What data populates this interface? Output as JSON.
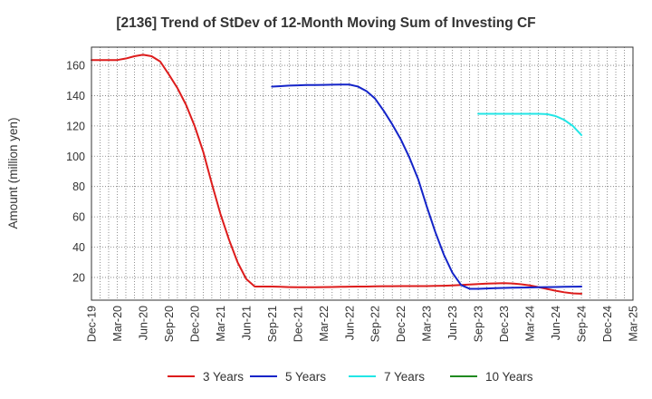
{
  "chart_data": {
    "type": "line",
    "title": "[2136]  Trend of StDev of 12-Month Moving Sum of Investing CF",
    "ylabel": "Amount (million yen)",
    "xlabel": "",
    "ylim": [
      5,
      172
    ],
    "yticks": [
      20,
      40,
      60,
      80,
      100,
      120,
      140,
      160
    ],
    "x_start": "2019-12",
    "x_end": "2025-03",
    "xtick_labels": [
      "Dec-19",
      "Mar-20",
      "Jun-20",
      "Sep-20",
      "Dec-20",
      "Mar-21",
      "Jun-21",
      "Sep-21",
      "Dec-21",
      "Mar-22",
      "Jun-22",
      "Sep-22",
      "Dec-22",
      "Mar-23",
      "Jun-23",
      "Sep-23",
      "Dec-23",
      "Mar-24",
      "Jun-24",
      "Sep-24",
      "Dec-24",
      "Mar-25"
    ],
    "grid": true,
    "legend_position": "bottom",
    "series": [
      {
        "name": "3 Years",
        "color": "#dd1c1c",
        "points": [
          [
            "2019-12",
            163.5
          ],
          [
            "2020-01",
            163.5
          ],
          [
            "2020-02",
            163.5
          ],
          [
            "2020-03",
            163.5
          ],
          [
            "2020-04",
            164.5
          ],
          [
            "2020-05",
            166
          ],
          [
            "2020-06",
            167
          ],
          [
            "2020-07",
            166
          ],
          [
            "2020-08",
            162.5
          ],
          [
            "2020-09",
            154
          ],
          [
            "2020-10",
            145
          ],
          [
            "2020-11",
            134
          ],
          [
            "2020-12",
            120
          ],
          [
            "2021-01",
            103
          ],
          [
            "2021-02",
            82
          ],
          [
            "2021-03",
            62
          ],
          [
            "2021-04",
            45
          ],
          [
            "2021-05",
            30
          ],
          [
            "2021-06",
            19
          ],
          [
            "2021-07",
            14
          ],
          [
            "2021-08",
            14
          ],
          [
            "2021-09",
            14
          ],
          [
            "2021-10",
            13.8
          ],
          [
            "2021-11",
            13.6
          ],
          [
            "2021-12",
            13.5
          ],
          [
            "2022-01",
            13.5
          ],
          [
            "2022-02",
            13.5
          ],
          [
            "2022-03",
            13.6
          ],
          [
            "2022-04",
            13.7
          ],
          [
            "2022-05",
            13.8
          ],
          [
            "2022-06",
            13.9
          ],
          [
            "2022-07",
            14
          ],
          [
            "2022-08",
            14
          ],
          [
            "2022-09",
            14.1
          ],
          [
            "2022-10",
            14.2
          ],
          [
            "2022-11",
            14.2
          ],
          [
            "2022-12",
            14.3
          ],
          [
            "2023-01",
            14.3
          ],
          [
            "2023-02",
            14.3
          ],
          [
            "2023-03",
            14.3
          ],
          [
            "2023-04",
            14.4
          ],
          [
            "2023-05",
            14.5
          ],
          [
            "2023-06",
            14.7
          ],
          [
            "2023-07",
            15
          ],
          [
            "2023-08",
            15.3
          ],
          [
            "2023-09",
            15.6
          ],
          [
            "2023-10",
            15.9
          ],
          [
            "2023-11",
            16.1
          ],
          [
            "2023-12",
            16.2
          ],
          [
            "2024-01",
            16
          ],
          [
            "2024-02",
            15.5
          ],
          [
            "2024-03",
            14.7
          ],
          [
            "2024-04",
            13.6
          ],
          [
            "2024-05",
            12.4
          ],
          [
            "2024-06",
            11.2
          ],
          [
            "2024-07",
            10.2
          ],
          [
            "2024-08",
            9.5
          ],
          [
            "2024-09",
            9.3
          ]
        ]
      },
      {
        "name": "5 Years",
        "color": "#1424c8",
        "points": [
          [
            "2021-09",
            146
          ],
          [
            "2021-10",
            146.3
          ],
          [
            "2021-11",
            146.6
          ],
          [
            "2021-12",
            146.8
          ],
          [
            "2022-01",
            147
          ],
          [
            "2022-02",
            147
          ],
          [
            "2022-03",
            147.1
          ],
          [
            "2022-04",
            147.2
          ],
          [
            "2022-05",
            147.3
          ],
          [
            "2022-06",
            147.3
          ],
          [
            "2022-07",
            146
          ],
          [
            "2022-08",
            143
          ],
          [
            "2022-09",
            138
          ],
          [
            "2022-10",
            130
          ],
          [
            "2022-11",
            121
          ],
          [
            "2022-12",
            111
          ],
          [
            "2023-01",
            99
          ],
          [
            "2023-02",
            85
          ],
          [
            "2023-03",
            67
          ],
          [
            "2023-04",
            50
          ],
          [
            "2023-05",
            35
          ],
          [
            "2023-06",
            23
          ],
          [
            "2023-07",
            15
          ],
          [
            "2023-08",
            12.5
          ],
          [
            "2023-09",
            12.5
          ],
          [
            "2023-10",
            12.7
          ],
          [
            "2023-11",
            12.9
          ],
          [
            "2023-12",
            13.1
          ],
          [
            "2024-01",
            13.2
          ],
          [
            "2024-02",
            13.3
          ],
          [
            "2024-03",
            13.4
          ],
          [
            "2024-04",
            13.5
          ],
          [
            "2024-05",
            13.6
          ],
          [
            "2024-06",
            13.7
          ],
          [
            "2024-07",
            13.8
          ],
          [
            "2024-08",
            13.9
          ],
          [
            "2024-09",
            14
          ]
        ]
      },
      {
        "name": "7 Years",
        "color": "#22e6e6",
        "points": [
          [
            "2023-09",
            128
          ],
          [
            "2023-10",
            128
          ],
          [
            "2023-11",
            128
          ],
          [
            "2023-12",
            128
          ],
          [
            "2024-01",
            128
          ],
          [
            "2024-02",
            128
          ],
          [
            "2024-03",
            128
          ],
          [
            "2024-04",
            128
          ],
          [
            "2024-05",
            127.8
          ],
          [
            "2024-06",
            126.5
          ],
          [
            "2024-07",
            124
          ],
          [
            "2024-08",
            120
          ],
          [
            "2024-09",
            114
          ]
        ]
      },
      {
        "name": "10 Years",
        "color": "#1f8a1f",
        "points": []
      }
    ]
  }
}
